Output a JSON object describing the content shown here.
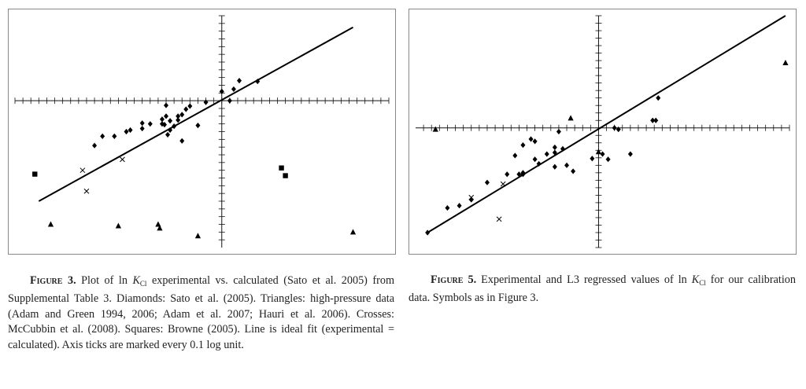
{
  "figure3": {
    "caption": {
      "label": "Figure 3.",
      "text_pre": " Plot of ln ",
      "k_symbol": "K",
      "k_subscript": "Cl",
      "text_post": " experimental vs. calculated (Sato et al. 2005) from Supplemental Table 3. Diamonds: Sato et al. (2005). Triangles: high-pressure data (Adam and Green 1994, 2006; Adam et al. 2007; Hauri et al. 2006). Crosses: McCubbin et al. (2008). Squares: Browne (2005). Line is ideal fit (experimental = calculated). Axis ticks are marked every 0.1 log unit."
    },
    "chart_data": {
      "type": "scatter",
      "xlim": [
        -2.6,
        2.1
      ],
      "ylim": [
        -1.9,
        1.1
      ],
      "x_tick_step": 0.1,
      "y_tick_step": 0.1,
      "grid": false,
      "ideal_fit_line": {
        "x": [
          -2.3,
          1.65
        ],
        "y": [
          -1.3,
          0.95
        ]
      },
      "series": [
        {
          "marker": "diamond",
          "points": [
            [
              -1.6,
              -0.58
            ],
            [
              -1.5,
              -0.46
            ],
            [
              -1.35,
              -0.46
            ],
            [
              -1.15,
              -0.38
            ],
            [
              -1.2,
              -0.4
            ],
            [
              -1.0,
              -0.36
            ],
            [
              -1.0,
              -0.29
            ],
            [
              -0.75,
              -0.24
            ],
            [
              -0.7,
              -0.2
            ],
            [
              -0.7,
              -0.06
            ],
            [
              -0.55,
              -0.2
            ],
            [
              -0.5,
              -0.18
            ],
            [
              -0.45,
              -0.11
            ],
            [
              -0.72,
              -0.31
            ],
            [
              -0.65,
              -0.26
            ],
            [
              -0.6,
              -0.33
            ],
            [
              -0.55,
              -0.25
            ],
            [
              -0.68,
              -0.44
            ],
            [
              -0.65,
              -0.38
            ],
            [
              -0.5,
              -0.52
            ],
            [
              -0.4,
              -0.07
            ],
            [
              -0.3,
              -0.32
            ],
            [
              -0.2,
              -0.02
            ],
            [
              0.0,
              0.12
            ],
            [
              0.1,
              0.0
            ],
            [
              0.15,
              0.15
            ],
            [
              0.22,
              0.26
            ],
            [
              0.45,
              0.25
            ],
            [
              -0.75,
              -0.3
            ],
            [
              -0.9,
              -0.3
            ]
          ]
        },
        {
          "marker": "triangle",
          "points": [
            [
              -2.15,
              -1.6
            ],
            [
              -1.3,
              -1.62
            ],
            [
              -0.8,
              -1.6
            ],
            [
              -0.78,
              -1.65
            ],
            [
              -0.3,
              -1.75
            ],
            [
              1.65,
              -1.7
            ]
          ]
        },
        {
          "marker": "cross",
          "points": [
            [
              -1.75,
              -0.9
            ],
            [
              -1.25,
              -0.76
            ],
            [
              -1.7,
              -1.17
            ]
          ]
        },
        {
          "marker": "square",
          "points": [
            [
              -2.35,
              -0.95
            ],
            [
              0.8,
              -0.97
            ],
            [
              0.75,
              -0.87
            ]
          ]
        }
      ]
    }
  },
  "figure5": {
    "caption": {
      "label": "Figure 5.",
      "text_pre": " Experimental and L3 regressed values of ln ",
      "k_symbol": "K",
      "k_subscript": "Cl",
      "text_post": " for our calibration data. Symbols as in Figure 3."
    },
    "chart_data": {
      "type": "scatter",
      "xlim": [
        -2.3,
        2.4
      ],
      "ylim": [
        -1.6,
        1.5
      ],
      "x_tick_step": 0.1,
      "y_tick_step": 0.1,
      "grid": false,
      "ideal_fit_line": {
        "x": [
          -2.15,
          2.35
        ],
        "y": [
          -1.4,
          1.5
        ]
      },
      "series": [
        {
          "marker": "diamond",
          "points": [
            [
              -2.15,
              -1.4
            ],
            [
              -1.9,
              -1.07
            ],
            [
              -1.75,
              -1.04
            ],
            [
              -1.6,
              -0.96
            ],
            [
              -1.4,
              -0.73
            ],
            [
              -1.15,
              -0.62
            ],
            [
              -1.0,
              -0.62
            ],
            [
              -0.95,
              -0.62
            ],
            [
              -1.05,
              -0.37
            ],
            [
              -0.95,
              -0.23
            ],
            [
              -0.85,
              -0.15
            ],
            [
              -0.8,
              -0.18
            ],
            [
              -0.8,
              -0.42
            ],
            [
              -0.75,
              -0.48
            ],
            [
              -0.65,
              -0.35
            ],
            [
              -0.55,
              -0.33
            ],
            [
              -0.55,
              -0.26
            ],
            [
              -0.5,
              -0.05
            ],
            [
              -0.45,
              -0.28
            ],
            [
              -0.55,
              -0.52
            ],
            [
              -0.4,
              -0.5
            ],
            [
              -0.32,
              -0.58
            ],
            [
              -0.08,
              -0.41
            ],
            [
              0.05,
              -0.35
            ],
            [
              0.12,
              -0.42
            ],
            [
              0.2,
              0.0
            ],
            [
              0.25,
              -0.02
            ],
            [
              0.75,
              0.4
            ],
            [
              0.68,
              0.1
            ],
            [
              0.72,
              0.1
            ],
            [
              0.4,
              -0.35
            ],
            [
              -0.95,
              -0.6
            ]
          ]
        },
        {
          "marker": "triangle",
          "points": [
            [
              -2.05,
              -0.02
            ],
            [
              -0.35,
              0.13
            ],
            [
              0.0,
              -0.32
            ],
            [
              2.35,
              0.87
            ]
          ]
        },
        {
          "marker": "cross",
          "points": [
            [
              -1.6,
              -0.93
            ],
            [
              -1.2,
              -0.75
            ],
            [
              -1.25,
              -1.22
            ]
          ]
        },
        {
          "marker": "square",
          "points": []
        }
      ]
    }
  }
}
